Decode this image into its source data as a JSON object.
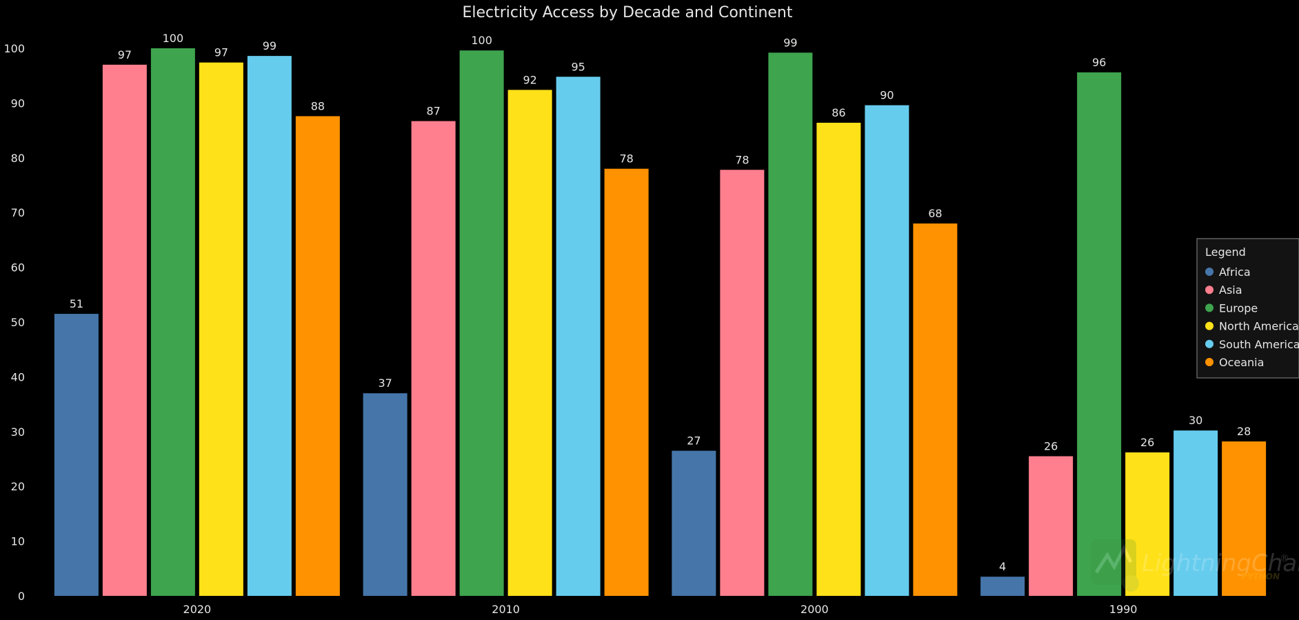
{
  "chart_data": {
    "type": "bar",
    "title": "Electricity Access by Decade and Continent",
    "xlabel": "",
    "ylabel": "",
    "categories": [
      "2020",
      "2010",
      "2000",
      "1990"
    ],
    "ylim": [
      0,
      100
    ],
    "yticks": [
      0,
      10,
      20,
      30,
      40,
      50,
      60,
      70,
      80,
      90,
      100
    ],
    "grid": false,
    "legend": {
      "title": "Legend",
      "position": "right"
    },
    "series": [
      {
        "name": "Africa",
        "color": "#4676a9",
        "values": [
          51.5,
          37,
          26.5,
          3.5
        ],
        "labels": [
          "51",
          "37",
          "27",
          "4"
        ]
      },
      {
        "name": "Asia",
        "color": "#ff7f8f",
        "values": [
          97,
          86.7,
          77.8,
          25.5
        ],
        "labels": [
          "97",
          "87",
          "78",
          "26"
        ]
      },
      {
        "name": "Europe",
        "color": "#3ea44e",
        "values": [
          100,
          99.6,
          99.2,
          95.6
        ],
        "labels": [
          "100",
          "100",
          "99",
          "96"
        ]
      },
      {
        "name": "North America",
        "color": "#ffe119",
        "values": [
          97.4,
          92.4,
          86.4,
          26.2
        ],
        "labels": [
          "97",
          "92",
          "86",
          "26"
        ]
      },
      {
        "name": "South America",
        "color": "#66ccee",
        "values": [
          98.6,
          94.8,
          89.6,
          30.2
        ],
        "labels": [
          "99",
          "95",
          "90",
          "30"
        ]
      },
      {
        "name": "Oceania",
        "color": "#ff9200",
        "values": [
          87.6,
          78,
          68,
          28.2
        ],
        "labels": [
          "88",
          "78",
          "68",
          "28"
        ]
      }
    ]
  },
  "watermark": {
    "text": "LightningChart",
    "sub": "PYTHON"
  }
}
